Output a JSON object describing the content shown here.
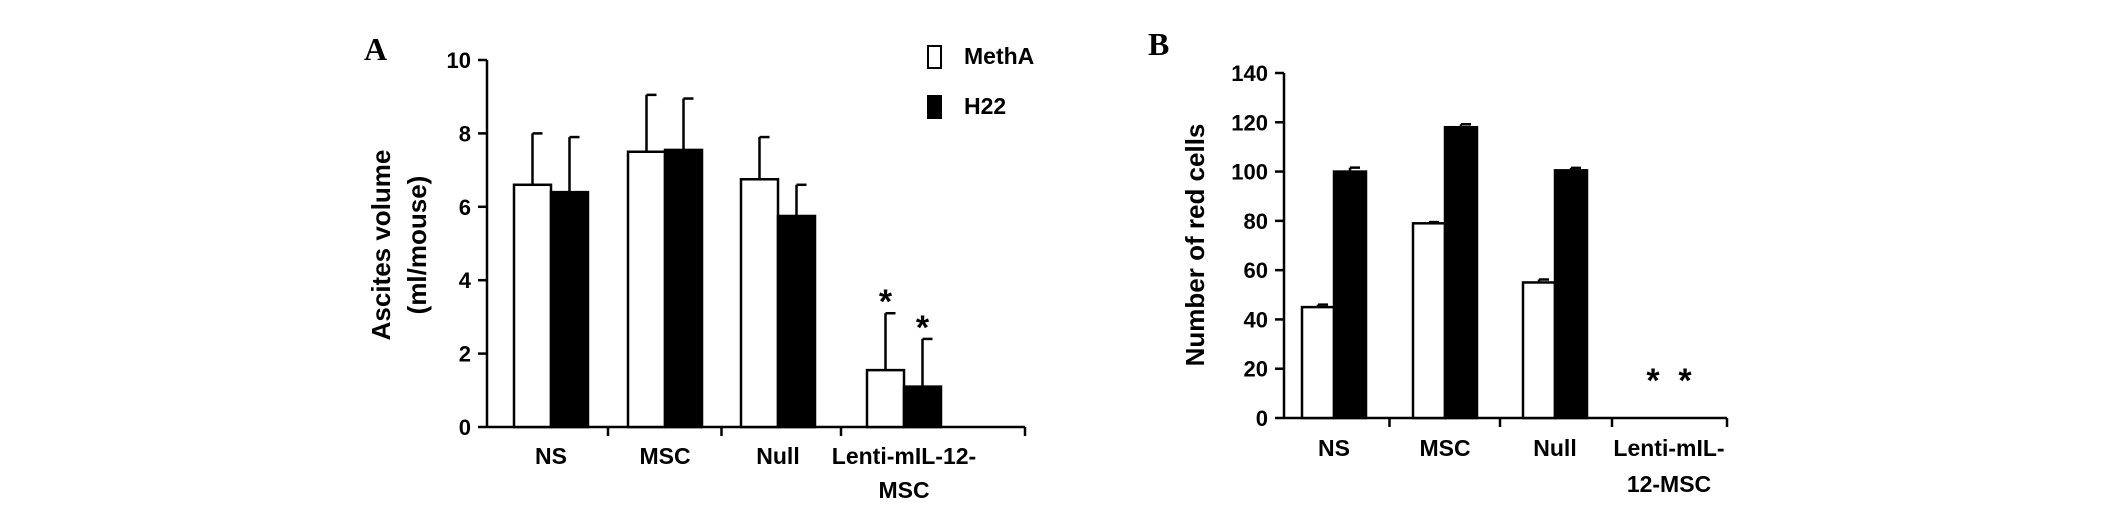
{
  "chart_data": [
    {
      "type": "bar",
      "panel_label": "A",
      "ylabel": [
        "Ascites volume",
        "(ml/mouse)"
      ],
      "ylim": [
        0,
        10
      ],
      "yticks": [
        0,
        2,
        4,
        6,
        8,
        10
      ],
      "categories": [
        [
          "NS"
        ],
        [
          "MSC"
        ],
        [
          "Null"
        ],
        [
          "Lenti-mIL-12-",
          "MSC"
        ]
      ],
      "series": [
        {
          "name": "MethA",
          "fill": "#ffffff",
          "values": [
            6.6,
            7.5,
            6.75,
            1.55
          ],
          "errors": [
            1.4,
            1.55,
            1.15,
            1.55
          ]
        },
        {
          "name": "H22",
          "fill": "#000000",
          "values": [
            6.4,
            7.55,
            5.75,
            1.1
          ],
          "errors": [
            1.5,
            1.4,
            0.85,
            1.3
          ]
        }
      ],
      "annotations": [
        {
          "text": "*",
          "category": 3,
          "series": 0
        },
        {
          "text": "*",
          "category": 3,
          "series": 1
        }
      ],
      "legend": "top-right",
      "grid": false
    },
    {
      "type": "bar",
      "panel_label": "B",
      "ylabel": [
        "Number of red cells"
      ],
      "ylim": [
        0,
        140
      ],
      "yticks": [
        0,
        20,
        40,
        60,
        80,
        100,
        120,
        140
      ],
      "categories": [
        [
          "NS"
        ],
        [
          "MSC"
        ],
        [
          "Null"
        ],
        [
          "Lenti-mIL-",
          "12-MSC"
        ]
      ],
      "series": [
        {
          "name": "MethA",
          "fill": "#ffffff",
          "values": [
            45,
            79,
            55,
            0
          ],
          "errors": [
            1,
            0.5,
            1.2,
            0
          ]
        },
        {
          "name": "H22",
          "fill": "#000000",
          "values": [
            100,
            118,
            100.5,
            0
          ],
          "errors": [
            1.6,
            1.2,
            1,
            0
          ]
        }
      ],
      "annotations": [
        {
          "text": "*",
          "category": 3,
          "series": 0
        },
        {
          "text": "*",
          "category": 3,
          "series": 1
        }
      ],
      "grid": false
    }
  ]
}
